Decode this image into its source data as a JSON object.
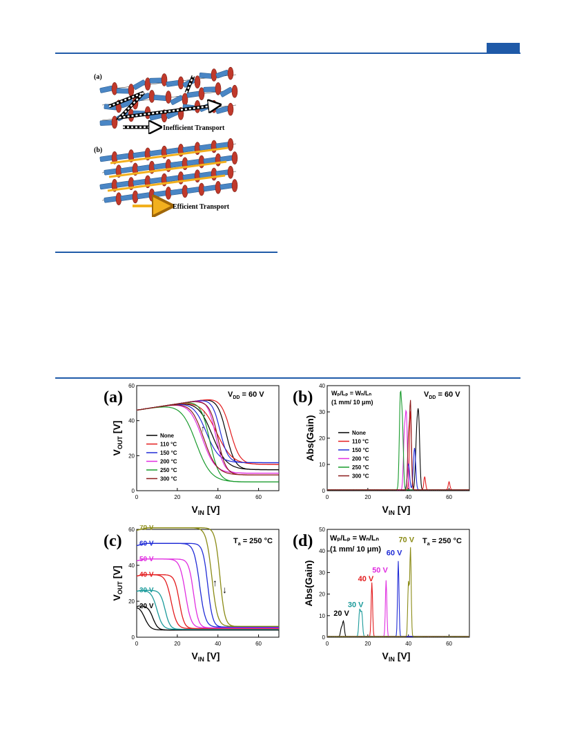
{
  "scheme": {
    "panel_a_label": "(a)",
    "panel_b_label": "(b)",
    "inefficient_label": "Inefficient Transport",
    "efficient_label": "Efficient Transport"
  },
  "colors": {
    "rule": "#1f5aa8",
    "rod": "#4a86c5",
    "disc": "#c0392b",
    "arrow_yellow": "#f2b01e"
  },
  "chart_data": [
    {
      "panel": "(a)",
      "type": "line",
      "annotation": "V DD = 60 V",
      "annotation_main": "V",
      "annotation_sub": "DD",
      "annotation_rest": " = 60 V",
      "xlabel_main": "V",
      "xlabel_sub": "IN",
      "xlabel_rest": " [V]",
      "ylabel_main": "V",
      "ylabel_sub": "OUT",
      "ylabel_rest": " [V]",
      "xlim": [
        0,
        70
      ],
      "ylim": [
        0,
        60
      ],
      "xticks": [
        0,
        20,
        40,
        60
      ],
      "yticks": [
        0,
        20,
        40,
        60
      ],
      "series": [
        {
          "name": "None",
          "color": "#000000",
          "vt": 44,
          "hi": 55,
          "lo": 12,
          "w": 2.2
        },
        {
          "name": "110 °C",
          "color": "#e31a1c",
          "vt": 46,
          "hi": 54,
          "lo": 15,
          "w": 2.4
        },
        {
          "name": "150 °C",
          "color": "#1f2bd6",
          "vt": 41,
          "hi": 53,
          "lo": 16,
          "w": 2.0
        },
        {
          "name": "200 °C",
          "color": "#e02de0",
          "vt": 39,
          "hi": 52,
          "lo": 10,
          "w": 2.0
        },
        {
          "name": "250 °C",
          "color": "#179a2b",
          "vt": 36,
          "hi": 52,
          "lo": 5,
          "w": 2.3
        },
        {
          "name": "300 °C",
          "color": "#8b1a1a",
          "vt": 40,
          "hi": 51,
          "lo": 9,
          "w": 2.0
        }
      ]
    },
    {
      "panel": "(b)",
      "type": "line",
      "annotation_main": "V",
      "annotation_sub": "DD",
      "annotation_rest": " = 60 V",
      "ratio_line": "Wₚ/Lₚ = Wₙ/Lₙ",
      "size_line": "(1 mm/ 10 μm)",
      "xlabel_main": "V",
      "xlabel_sub": "IN",
      "xlabel_rest": " [V]",
      "ylabel": "Abs(Gain)",
      "xlim": [
        0,
        70
      ],
      "ylim": [
        0,
        40
      ],
      "xticks": [
        0,
        20,
        40,
        60
      ],
      "yticks": [
        0,
        10,
        20,
        30,
        40
      ],
      "series": [
        {
          "name": "None",
          "color": "#000000",
          "peaks": [
            [
              45,
              26,
              0.8
            ],
            [
              44,
              18,
              0.8
            ]
          ]
        },
        {
          "name": "110 °C",
          "color": "#e31a1c",
          "peaks": [
            [
              41,
              30,
              0.7
            ],
            [
              48,
              5,
              0.6
            ],
            [
              60,
              3,
              0.6
            ]
          ]
        },
        {
          "name": "150 °C",
          "color": "#1f2bd6",
          "peaks": [
            [
              43,
              16,
              0.8
            ],
            [
              40,
              10,
              0.8
            ]
          ]
        },
        {
          "name": "200 °C",
          "color": "#e02de0",
          "peaks": [
            [
              39,
              27,
              0.7
            ],
            [
              38,
              20,
              0.7
            ]
          ]
        },
        {
          "name": "250 °C",
          "color": "#179a2b",
          "peaks": [
            [
              36,
              34,
              0.7
            ],
            [
              37,
              24,
              0.7
            ]
          ]
        },
        {
          "name": "300 °C",
          "color": "#8b1a1a",
          "peaks": [
            [
              41,
              33,
              0.6
            ],
            [
              40,
              20,
              0.6
            ]
          ]
        }
      ]
    },
    {
      "panel": "(c)",
      "type": "line",
      "annotation_main": "T",
      "annotation_sub": "a",
      "annotation_rest": " = 250 °C",
      "xlabel_main": "V",
      "xlabel_sub": "IN",
      "xlabel_rest": " [V]",
      "ylabel_main": "V",
      "ylabel_sub": "OUT",
      "ylabel_rest": " [V]",
      "xlim": [
        0,
        70
      ],
      "ylim": [
        0,
        60
      ],
      "xticks": [
        0,
        20,
        40,
        60
      ],
      "yticks": [
        0,
        20,
        40,
        60
      ],
      "series": [
        {
          "name": "20 V",
          "color": "#000000",
          "vdd": 20,
          "vt": 8
        },
        {
          "name": "30 V",
          "color": "#1a9a9a",
          "vdd": 30,
          "vt": 14
        },
        {
          "name": "40 V",
          "color": "#e31a1c",
          "vdd": 40,
          "vt": 21
        },
        {
          "name": "50 V",
          "color": "#e02de0",
          "vdd": 50,
          "vt": 28
        },
        {
          "name": "60 V",
          "color": "#1f2bd6",
          "vdd": 60,
          "vt": 35
        },
        {
          "name": "70 V",
          "color": "#8a8a14",
          "vdd": 70,
          "vt": 41
        }
      ]
    },
    {
      "panel": "(d)",
      "type": "line",
      "annotation_main": "T",
      "annotation_sub": "a",
      "annotation_rest": " = 250 °C",
      "ratio_line": "Wₚ/Lₚ = Wₙ/Lₙ",
      "size_line": "(1 mm/ 10 μm)",
      "xlabel_main": "V",
      "xlabel_sub": "IN",
      "xlabel_rest": " [V]",
      "ylabel": "Abs(Gain)",
      "xlim": [
        0,
        70
      ],
      "ylim": [
        0,
        50
      ],
      "xticks": [
        0,
        20,
        40,
        60
      ],
      "yticks": [
        0,
        10,
        20,
        30,
        40,
        50
      ],
      "series": [
        {
          "name": "20 V",
          "color": "#000000",
          "peaks": [
            [
              8,
              7,
              0.6
            ],
            [
              7,
              4,
              0.6
            ]
          ],
          "label_at": [
            7,
            10
          ]
        },
        {
          "name": "30 V",
          "color": "#1a9a9a",
          "peaks": [
            [
              16,
              12,
              0.6
            ],
            [
              17,
              11,
              0.6
            ]
          ],
          "label_at": [
            14,
            14
          ]
        },
        {
          "name": "40 V",
          "color": "#e31a1c",
          "peaks": [
            [
              22,
              25,
              0.5
            ]
          ],
          "label_at": [
            19,
            26
          ]
        },
        {
          "name": "50 V",
          "color": "#e02de0",
          "peaks": [
            [
              29,
              26,
              0.5
            ]
          ],
          "label_at": [
            26,
            30
          ]
        },
        {
          "name": "60 V",
          "color": "#1f2bd6",
          "peaks": [
            [
              35,
              35,
              0.5
            ]
          ],
          "label_at": [
            33,
            38
          ]
        },
        {
          "name": "70 V",
          "color": "#8a8a14",
          "peaks": [
            [
              41,
              41,
              0.5
            ],
            [
              40,
              25,
              0.5
            ]
          ],
          "label_at": [
            39,
            44
          ]
        }
      ]
    }
  ]
}
